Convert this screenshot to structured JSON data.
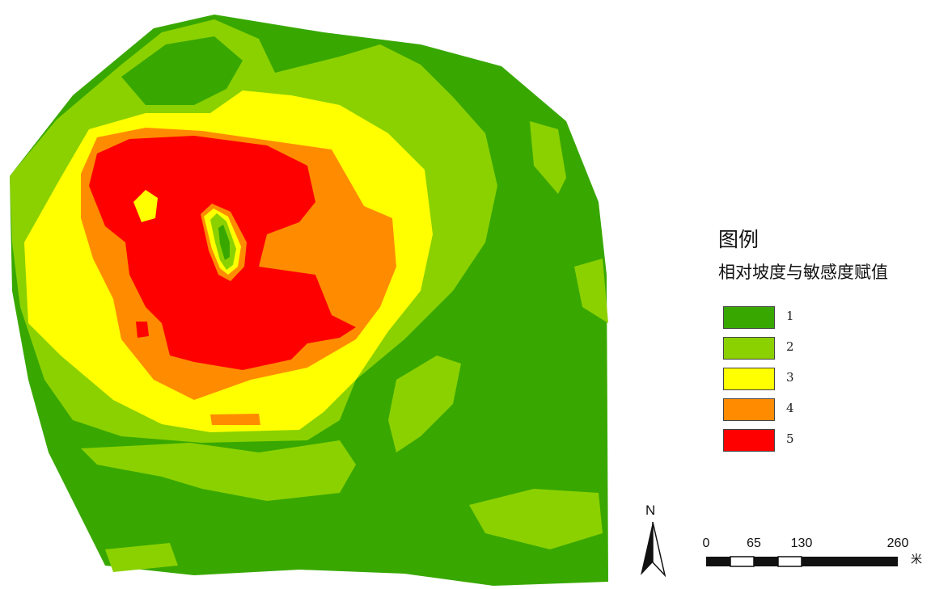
{
  "legend": {
    "title": "图例",
    "subtitle": "相对坡度与敏感度赋值",
    "items": [
      {
        "label": "1",
        "color": "#38a800"
      },
      {
        "label": "2",
        "color": "#8bd100"
      },
      {
        "label": "3",
        "color": "#ffff00"
      },
      {
        "label": "4",
        "color": "#ff8c00"
      },
      {
        "label": "5",
        "color": "#ff0000"
      }
    ]
  },
  "north_arrow": {
    "letter": "N"
  },
  "scale_bar": {
    "ticks": [
      "0",
      "65",
      "130",
      "260"
    ],
    "unit": "米"
  }
}
